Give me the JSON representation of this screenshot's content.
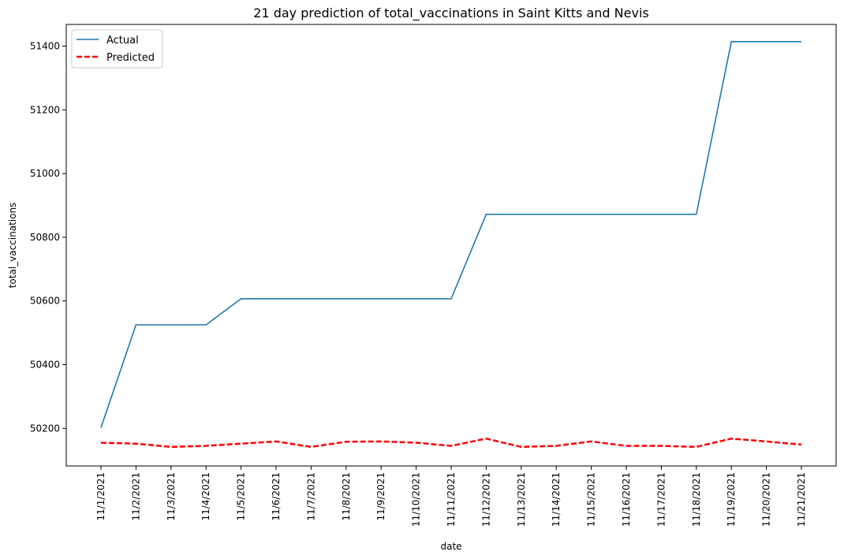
{
  "chart_data": {
    "type": "line",
    "title": "21 day prediction of total_vaccinations in Saint Kitts and Nevis",
    "xlabel": "date",
    "ylabel": "total_vaccinations",
    "categories": [
      "11/1/2021",
      "11/2/2021",
      "11/3/2021",
      "11/4/2021",
      "11/5/2021",
      "11/6/2021",
      "11/7/2021",
      "11/8/2021",
      "11/9/2021",
      "11/10/2021",
      "11/11/2021",
      "11/12/2021",
      "11/13/2021",
      "11/14/2021",
      "11/15/2021",
      "11/16/2021",
      "11/17/2021",
      "11/18/2021",
      "11/19/2021",
      "11/20/2021",
      "11/21/2021"
    ],
    "yticks": [
      50200,
      50400,
      50600,
      50800,
      51000,
      51200,
      51400
    ],
    "ylim": [
      50082,
      51468
    ],
    "grid": false,
    "legend_position": "top-left",
    "series": [
      {
        "name": "Actual",
        "color": "#1f77b4",
        "style": "solid",
        "values": [
          50202,
          50525,
          50525,
          50525,
          50607,
          50607,
          50607,
          50607,
          50607,
          50607,
          50607,
          50872,
          50872,
          50872,
          50872,
          50872,
          50872,
          50872,
          51414,
          51414,
          51414
        ]
      },
      {
        "name": "Predicted",
        "color": "#ff0000",
        "style": "dashed",
        "values": [
          50155,
          50152,
          50142,
          50145,
          50152,
          50159,
          50142,
          50158,
          50159,
          50155,
          50145,
          50168,
          50142,
          50145,
          50159,
          50145,
          50145,
          50142,
          50168,
          50159,
          50149
        ]
      }
    ]
  }
}
